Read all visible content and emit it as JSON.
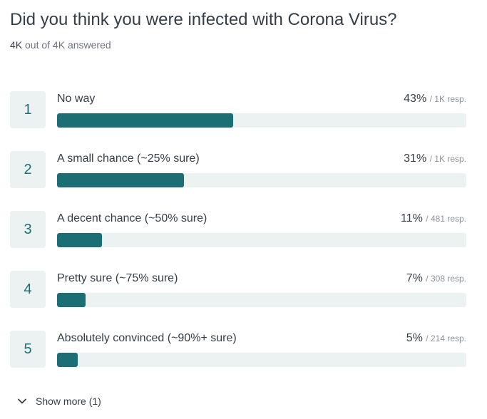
{
  "question": {
    "title": "Did you think you were infected with Corona Virus?",
    "answered_count": "4K",
    "answered_rest": "out of 4K answered"
  },
  "colors": {
    "bar_fill": "#1b6e73",
    "bar_track": "#ecf2f2",
    "number_badge_bg": "#ecf2f2"
  },
  "chart_data": {
    "type": "bar",
    "categories": [
      "No way",
      "A small chance (~25% sure)",
      "A decent chance (~50% sure)",
      "Pretty sure (~75% sure)",
      "Absolutely convinced (~90%+ sure)"
    ],
    "values": [
      43,
      31,
      11,
      7,
      5
    ],
    "ylim": [
      0,
      100
    ]
  },
  "options": [
    {
      "number": "1",
      "label": "No way",
      "percent": "43%",
      "responses": "/ 1K resp.",
      "value": 43
    },
    {
      "number": "2",
      "label": "A small chance (~25% sure)",
      "percent": "31%",
      "responses": "/ 1K resp.",
      "value": 31
    },
    {
      "number": "3",
      "label": "A decent chance (~50% sure)",
      "percent": "11%",
      "responses": "/ 481 resp.",
      "value": 11
    },
    {
      "number": "4",
      "label": "Pretty sure (~75% sure)",
      "percent": "7%",
      "responses": "/ 308 resp.",
      "value": 7
    },
    {
      "number": "5",
      "label": "Absolutely convinced (~90%+ sure)",
      "percent": "5%",
      "responses": "/ 214 resp.",
      "value": 5
    }
  ],
  "show_more": {
    "label": "Show more (1)",
    "icon": "chevron-down-icon"
  }
}
